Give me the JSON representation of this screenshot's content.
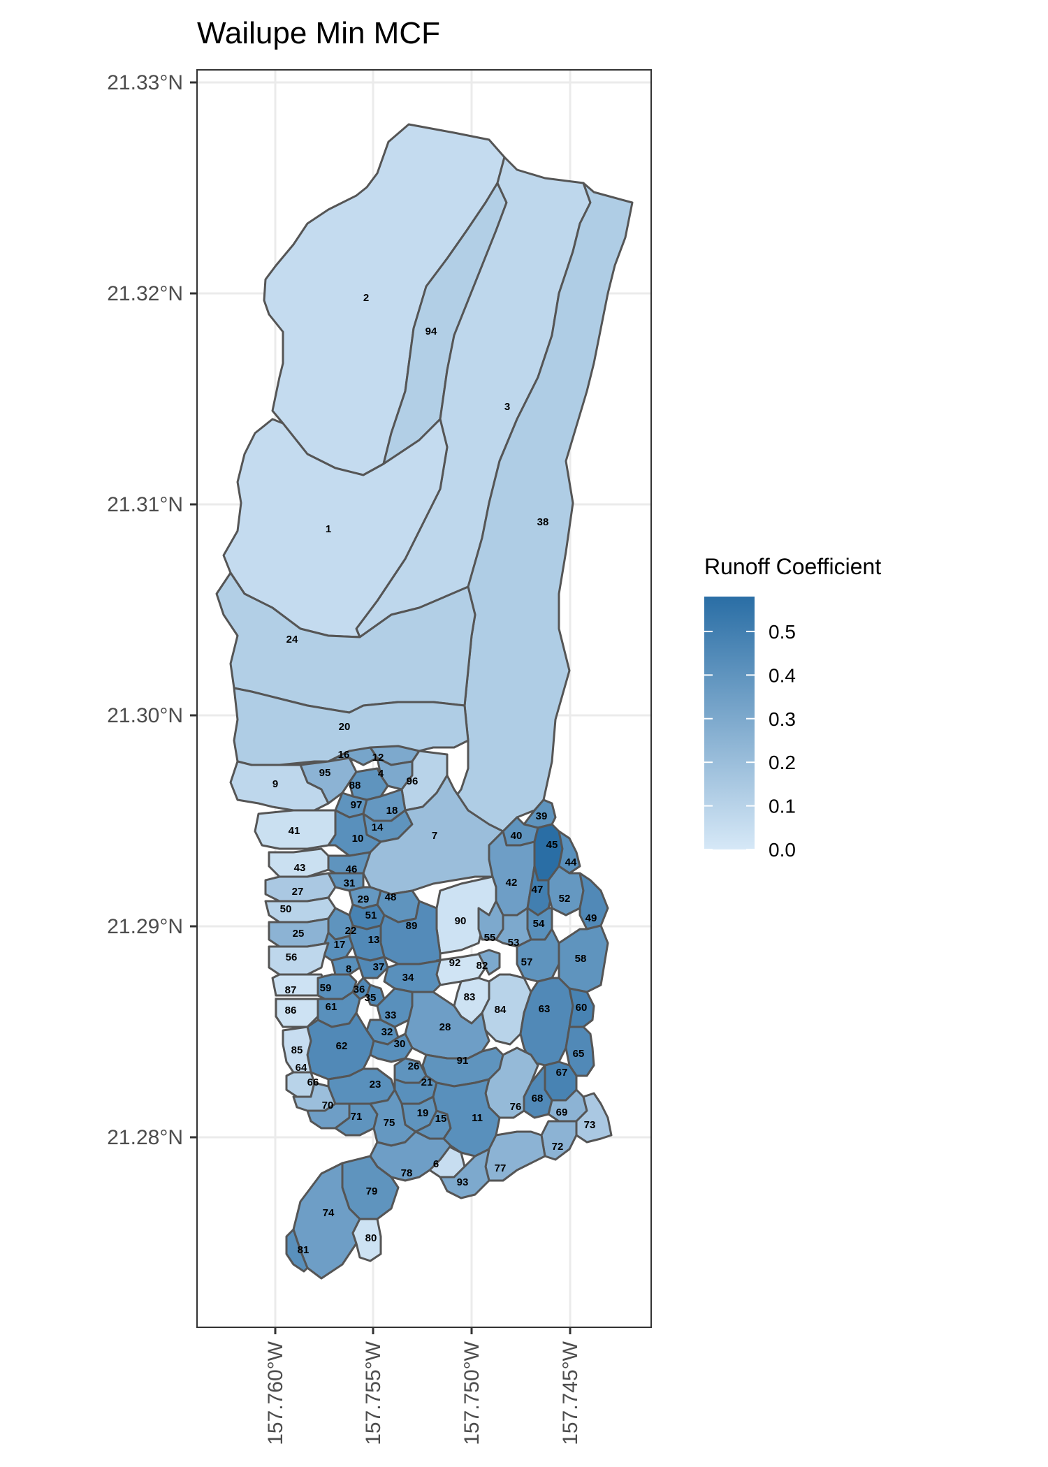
{
  "chart_data": {
    "type": "choropleth",
    "title": "Wailupe Min MCF",
    "lat_ticks": [
      "21.33°N",
      "21.32°N",
      "21.31°N",
      "21.30°N",
      "21.29°N",
      "21.28°N"
    ],
    "lon_ticks": [
      "157.760°W",
      "157.755°W",
      "157.750°W",
      "157.745°W"
    ],
    "grid": true,
    "legend": {
      "title": "Runoff Coefficient",
      "placement": "right",
      "ticks": [
        "0.0",
        "0.1",
        "0.2",
        "0.3",
        "0.4",
        "0.5"
      ],
      "range": [
        0,
        0.58
      ],
      "low_color": "#d6e8f7",
      "high_color": "#2a6ea5"
    },
    "colors": {
      "border": "#555555",
      "grid": "#ebebeb",
      "panel_border": "#333333"
    },
    "subcatchments": [
      {
        "id": "2",
        "value": 0.06
      },
      {
        "id": "94",
        "value": 0.12
      },
      {
        "id": "3",
        "value": 0.08
      },
      {
        "id": "38",
        "value": 0.13
      },
      {
        "id": "1",
        "value": 0.06
      },
      {
        "id": "24",
        "value": 0.12
      },
      {
        "id": "20",
        "value": 0.13
      },
      {
        "id": "16",
        "value": 0.32
      },
      {
        "id": "12",
        "value": 0.3
      },
      {
        "id": "95",
        "value": 0.25
      },
      {
        "id": "4",
        "value": 0.3
      },
      {
        "id": "96",
        "value": 0.1
      },
      {
        "id": "9",
        "value": 0.08
      },
      {
        "id": "88",
        "value": 0.4
      },
      {
        "id": "97",
        "value": 0.4
      },
      {
        "id": "18",
        "value": 0.38
      },
      {
        "id": "41",
        "value": 0.04
      },
      {
        "id": "14",
        "value": 0.4
      },
      {
        "id": "10",
        "value": 0.42
      },
      {
        "id": "7",
        "value": 0.2
      },
      {
        "id": "39",
        "value": 0.4
      },
      {
        "id": "40",
        "value": 0.4
      },
      {
        "id": "45",
        "value": 0.58
      },
      {
        "id": "44",
        "value": 0.42
      },
      {
        "id": "42",
        "value": 0.35
      },
      {
        "id": "47",
        "value": 0.5
      },
      {
        "id": "52",
        "value": 0.38
      },
      {
        "id": "49",
        "value": 0.45
      },
      {
        "id": "43",
        "value": 0.04
      },
      {
        "id": "46",
        "value": 0.4
      },
      {
        "id": "31",
        "value": 0.4
      },
      {
        "id": "27",
        "value": 0.15
      },
      {
        "id": "29",
        "value": 0.38
      },
      {
        "id": "48",
        "value": 0.4
      },
      {
        "id": "90",
        "value": 0.03
      },
      {
        "id": "54",
        "value": 0.42
      },
      {
        "id": "50",
        "value": 0.1
      },
      {
        "id": "51",
        "value": 0.48
      },
      {
        "id": "25",
        "value": 0.25
      },
      {
        "id": "22",
        "value": 0.4
      },
      {
        "id": "89",
        "value": 0.44
      },
      {
        "id": "55",
        "value": 0.3
      },
      {
        "id": "53",
        "value": 0.3
      },
      {
        "id": "17",
        "value": 0.42
      },
      {
        "id": "13",
        "value": 0.45
      },
      {
        "id": "57",
        "value": 0.4
      },
      {
        "id": "58",
        "value": 0.4
      },
      {
        "id": "56",
        "value": 0.08
      },
      {
        "id": "8",
        "value": 0.42
      },
      {
        "id": "37",
        "value": 0.45
      },
      {
        "id": "92",
        "value": 0.02
      },
      {
        "id": "82",
        "value": 0.3
      },
      {
        "id": "34",
        "value": 0.42
      },
      {
        "id": "87",
        "value": 0.03
      },
      {
        "id": "59",
        "value": 0.42
      },
      {
        "id": "36",
        "value": 0.45
      },
      {
        "id": "35",
        "value": 0.45
      },
      {
        "id": "83",
        "value": 0.03
      },
      {
        "id": "86",
        "value": 0.03
      },
      {
        "id": "61",
        "value": 0.42
      },
      {
        "id": "84",
        "value": 0.1
      },
      {
        "id": "63",
        "value": 0.45
      },
      {
        "id": "60",
        "value": 0.48
      },
      {
        "id": "33",
        "value": 0.42
      },
      {
        "id": "28",
        "value": 0.35
      },
      {
        "id": "32",
        "value": 0.42
      },
      {
        "id": "62",
        "value": 0.45
      },
      {
        "id": "30",
        "value": 0.42
      },
      {
        "id": "85",
        "value": 0.05
      },
      {
        "id": "91",
        "value": 0.4
      },
      {
        "id": "65",
        "value": 0.45
      },
      {
        "id": "67",
        "value": 0.48
      },
      {
        "id": "64",
        "value": 0.1
      },
      {
        "id": "26",
        "value": 0.4
      },
      {
        "id": "66",
        "value": 0.2
      },
      {
        "id": "23",
        "value": 0.42
      },
      {
        "id": "21",
        "value": 0.42
      },
      {
        "id": "68",
        "value": 0.45
      },
      {
        "id": "76",
        "value": 0.22
      },
      {
        "id": "69",
        "value": 0.25
      },
      {
        "id": "70",
        "value": 0.35
      },
      {
        "id": "71",
        "value": 0.4
      },
      {
        "id": "19",
        "value": 0.4
      },
      {
        "id": "15",
        "value": 0.4
      },
      {
        "id": "11",
        "value": 0.42
      },
      {
        "id": "75",
        "value": 0.38
      },
      {
        "id": "73",
        "value": 0.15
      },
      {
        "id": "72",
        "value": 0.25
      },
      {
        "id": "6",
        "value": 0.05
      },
      {
        "id": "77",
        "value": 0.25
      },
      {
        "id": "78",
        "value": 0.35
      },
      {
        "id": "93",
        "value": 0.3
      },
      {
        "id": "79",
        "value": 0.4
      },
      {
        "id": "74",
        "value": 0.35
      },
      {
        "id": "80",
        "value": 0.03
      },
      {
        "id": "81",
        "value": 0.42
      }
    ]
  }
}
